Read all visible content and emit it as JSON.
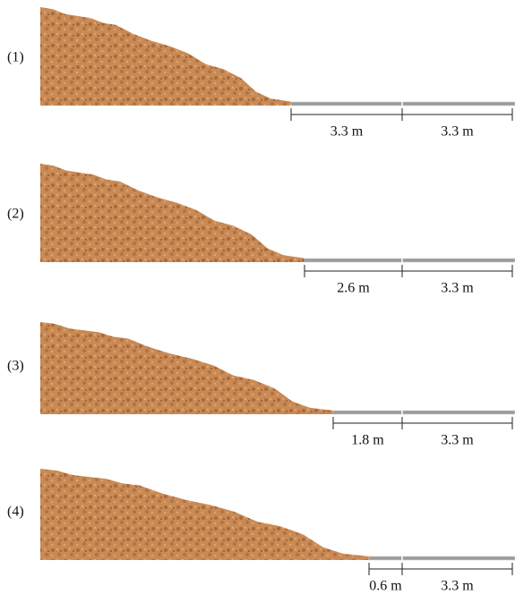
{
  "panels": [
    {
      "label": "(1)",
      "segments": [
        "3.3 m",
        "3.3 m"
      ]
    },
    {
      "label": "(2)",
      "segments": [
        "2.6 m",
        "3.3 m"
      ]
    },
    {
      "label": "(3)",
      "segments": [
        "1.8 m",
        "3.3 m"
      ]
    },
    {
      "label": "(4)",
      "segments": [
        "0.6 m",
        "3.3 m"
      ]
    }
  ]
}
